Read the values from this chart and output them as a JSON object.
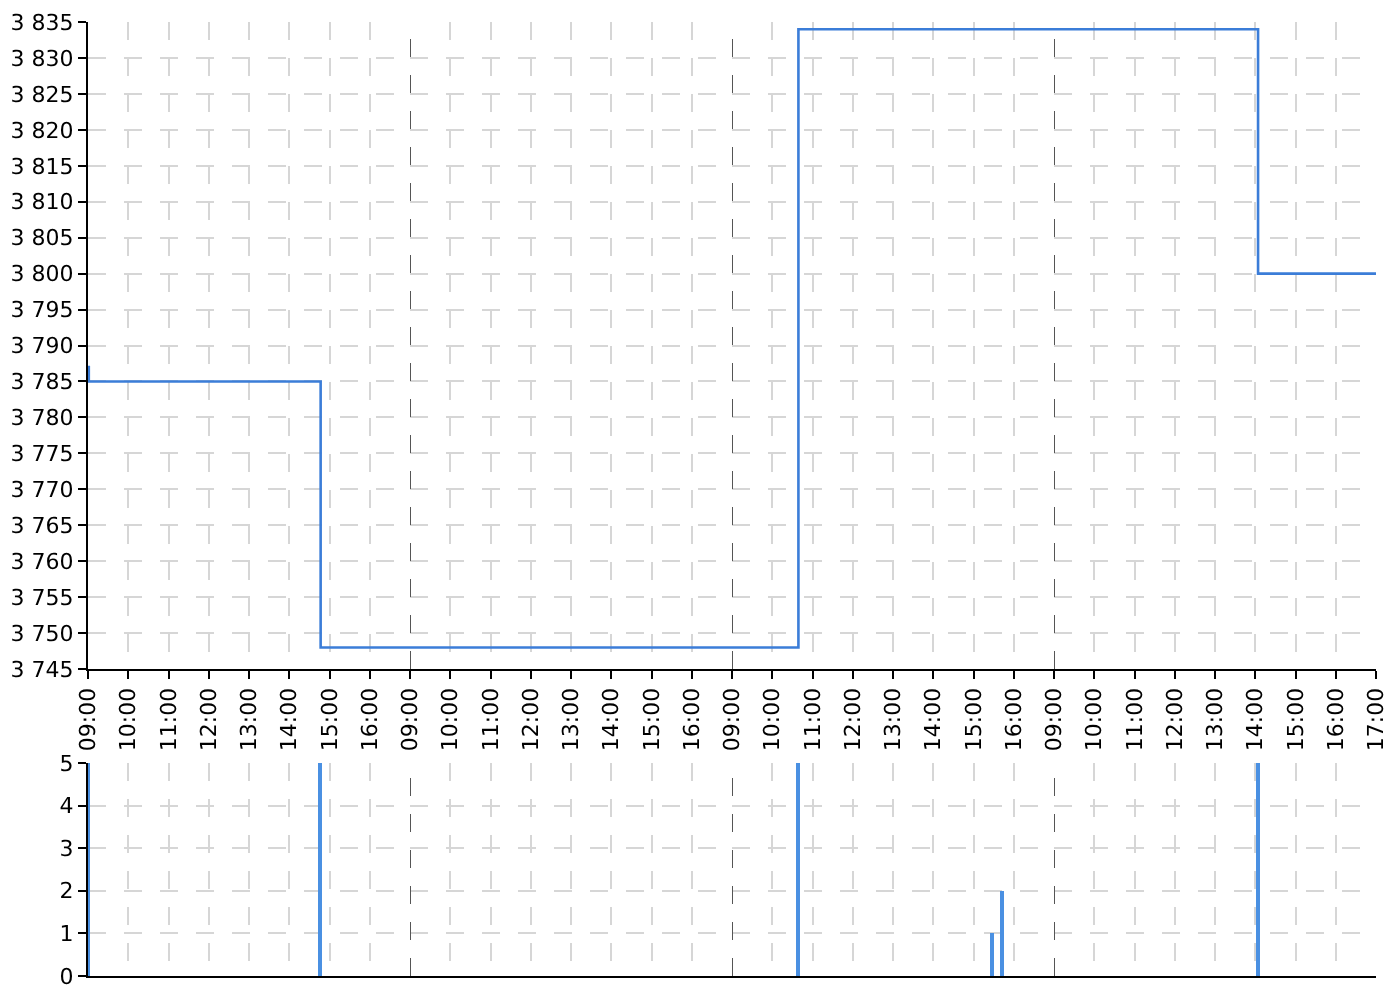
{
  "chart_data": [
    {
      "type": "step",
      "color": "#3b7dd8",
      "x": [
        9,
        9.02,
        14.78,
        17
      ],
      "values": [
        3787,
        3785,
        3748,
        3748
      ],
      "xlim": [
        9,
        17
      ],
      "xticks": [
        {
          "value": 9,
          "label": "09:00"
        },
        {
          "value": 10,
          "label": "10:00"
        },
        {
          "value": 11,
          "label": "11:00"
        },
        {
          "value": 12,
          "label": "12:00"
        },
        {
          "value": 13,
          "label": "13:00"
        },
        {
          "value": 14,
          "label": "14:00"
        },
        {
          "value": 15,
          "label": "15:00"
        },
        {
          "value": 16,
          "label": "16:00"
        }
      ],
      "ylim": [
        3745,
        3835
      ],
      "yticks": [
        {
          "value": 3745,
          "label": "3 745"
        },
        {
          "value": 3750,
          "label": "3 750"
        },
        {
          "value": 3755,
          "label": "3 755"
        },
        {
          "value": 3760,
          "label": "3 760"
        },
        {
          "value": 3765,
          "label": "3 765"
        },
        {
          "value": 3770,
          "label": "3 770"
        },
        {
          "value": 3775,
          "label": "3 775"
        },
        {
          "value": 3780,
          "label": "3 780"
        },
        {
          "value": 3785,
          "label": "3 785"
        },
        {
          "value": 3790,
          "label": "3 790"
        },
        {
          "value": 3795,
          "label": "3 795"
        },
        {
          "value": 3800,
          "label": "3 800"
        },
        {
          "value": 3805,
          "label": "3 805"
        },
        {
          "value": 3810,
          "label": "3 810"
        },
        {
          "value": 3815,
          "label": "3 815"
        },
        {
          "value": 3820,
          "label": "3 820"
        },
        {
          "value": 3825,
          "label": "3 825"
        },
        {
          "value": 3830,
          "label": "3 830"
        },
        {
          "value": 3835,
          "label": "3 835"
        }
      ],
      "grid": true
    },
    {
      "type": "step",
      "color": "#3b7dd8",
      "x": [
        9,
        17
      ],
      "values": [
        3748,
        3748
      ],
      "xlim": [
        9,
        17
      ],
      "xticks": [
        {
          "value": 9,
          "label": "09:00"
        },
        {
          "value": 10,
          "label": "10:00"
        },
        {
          "value": 11,
          "label": "11:00"
        },
        {
          "value": 12,
          "label": "12:00"
        },
        {
          "value": 13,
          "label": "13:00"
        },
        {
          "value": 14,
          "label": "14:00"
        },
        {
          "value": 15,
          "label": "15:00"
        },
        {
          "value": 16,
          "label": "16:00"
        }
      ],
      "ylim": [
        3745,
        3835
      ],
      "yticks": [
        3745,
        3750,
        3755,
        3760,
        3765,
        3770,
        3775,
        3780,
        3785,
        3790,
        3795,
        3800,
        3805,
        3810,
        3815,
        3820,
        3825,
        3830,
        3835
      ],
      "tick_labels": "x",
      "grid": true,
      "ref_lines": [
        {
          "axis": "x",
          "value": 9,
          "color": "#555555",
          "line_style": "dashed"
        }
      ]
    },
    {
      "type": "step",
      "color": "#3b7dd8",
      "x": [
        9,
        10.65,
        17
      ],
      "values": [
        3748,
        3834,
        3834
      ],
      "xlim": [
        9,
        17
      ],
      "xticks": [
        {
          "value": 9,
          "label": "09:00"
        },
        {
          "value": 10,
          "label": "10:00"
        },
        {
          "value": 11,
          "label": "11:00"
        },
        {
          "value": 12,
          "label": "12:00"
        },
        {
          "value": 13,
          "label": "13:00"
        },
        {
          "value": 14,
          "label": "14:00"
        },
        {
          "value": 15,
          "label": "15:00"
        },
        {
          "value": 16,
          "label": "16:00"
        }
      ],
      "ylim": [
        3745,
        3835
      ],
      "yticks": [
        3745,
        3750,
        3755,
        3760,
        3765,
        3770,
        3775,
        3780,
        3785,
        3790,
        3795,
        3800,
        3805,
        3810,
        3815,
        3820,
        3825,
        3830,
        3835
      ],
      "tick_labels": "x",
      "grid": true,
      "ref_lines": [
        {
          "axis": "x",
          "value": 9,
          "color": "#555555",
          "line_style": "dashed"
        }
      ]
    },
    {
      "type": "step",
      "color": "#3b7dd8",
      "x": [
        9,
        14.07,
        17
      ],
      "values": [
        3834,
        3800,
        3800
      ],
      "xlim": [
        9,
        17
      ],
      "xticks": [
        {
          "value": 9,
          "label": "09:00"
        },
        {
          "value": 10,
          "label": "10:00"
        },
        {
          "value": 11,
          "label": "11:00"
        },
        {
          "value": 12,
          "label": "12:00"
        },
        {
          "value": 13,
          "label": "13:00"
        },
        {
          "value": 14,
          "label": "14:00"
        },
        {
          "value": 15,
          "label": "15:00"
        },
        {
          "value": 16,
          "label": "16:00"
        },
        {
          "value": 17,
          "label": "17:00"
        }
      ],
      "ylim": [
        3745,
        3835
      ],
      "yticks": [
        3745,
        3750,
        3755,
        3760,
        3765,
        3770,
        3775,
        3780,
        3785,
        3790,
        3795,
        3800,
        3805,
        3810,
        3815,
        3820,
        3825,
        3830,
        3835
      ],
      "tick_labels": "x",
      "grid": true,
      "ref_lines": [
        {
          "axis": "x",
          "value": 9,
          "color": "#555555",
          "line_style": "dashed"
        }
      ]
    },
    {
      "type": "bar",
      "color": "#4a90e2",
      "x": [
        9,
        14.78
      ],
      "values": [
        5,
        5
      ],
      "xlim": [
        9,
        17
      ],
      "xticks": [
        9,
        10,
        11,
        12,
        13,
        14,
        15,
        16
      ],
      "ylim": [
        0,
        5
      ],
      "yticks": [
        0,
        1,
        2,
        3,
        4,
        5
      ],
      "tick_labels": "y",
      "grid": true
    },
    {
      "type": "bar",
      "xlim": [
        9,
        17
      ],
      "xticks": [
        9,
        10,
        11,
        12,
        13,
        14,
        15,
        16
      ],
      "ylim": [
        0,
        5
      ],
      "yticks": [
        0,
        1,
        2,
        3,
        4,
        5
      ],
      "tick_labels": false,
      "grid": true,
      "ref_lines": [
        {
          "axis": "x",
          "value": 9,
          "color": "#555555",
          "line_style": "dashed"
        }
      ]
    },
    {
      "type": "bar",
      "color": "#4a90e2",
      "x": [
        10.65,
        15.46,
        15.71
      ],
      "values": [
        5,
        1,
        2
      ],
      "xlim": [
        9,
        17
      ],
      "xticks": [
        9,
        10,
        11,
        12,
        13,
        14,
        15,
        16
      ],
      "ylim": [
        0,
        5
      ],
      "yticks": [
        0,
        1,
        2,
        3,
        4,
        5
      ],
      "tick_labels": false,
      "grid": true,
      "ref_lines": [
        {
          "axis": "x",
          "value": 9,
          "color": "#555555",
          "line_style": "dashed"
        }
      ]
    },
    {
      "type": "bar",
      "color": "#4a90e2",
      "x": [
        14.07
      ],
      "values": [
        5
      ],
      "xlim": [
        9,
        17
      ],
      "xticks": [
        9,
        10,
        11,
        12,
        13,
        14,
        15,
        16
      ],
      "ylim": [
        0,
        5
      ],
      "yticks": [
        0,
        1,
        2,
        3,
        4,
        5
      ],
      "tick_labels": false,
      "grid": true,
      "ref_lines": [
        {
          "axis": "x",
          "value": 9,
          "color": "#555555",
          "line_style": "dashed"
        }
      ]
    }
  ]
}
